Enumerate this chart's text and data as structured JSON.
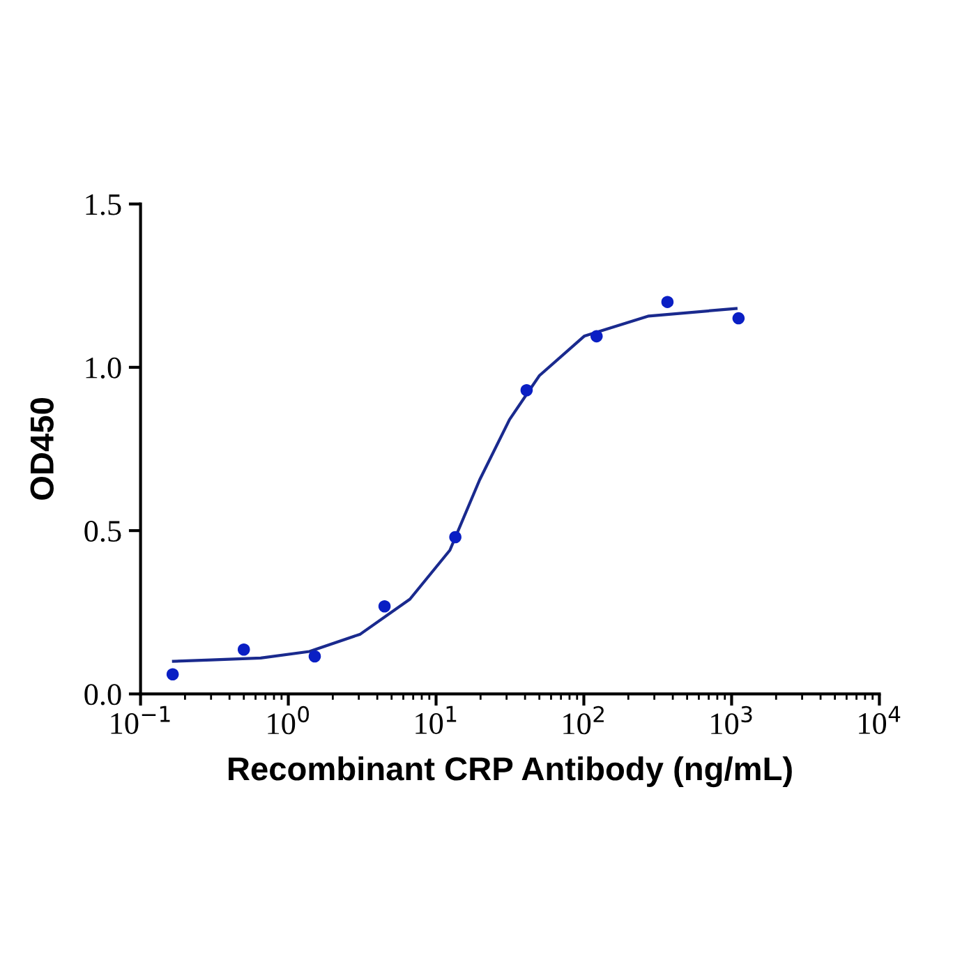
{
  "chart_data": {
    "type": "scatter",
    "xlabel": "Recombinant CRP Antibody (ng/mL)",
    "ylabel": "OD450",
    "log": "x",
    "xlim": [
      0.1,
      10000
    ],
    "xticks": [
      {
        "value": 0.1,
        "label": "10$^{−1}$"
      },
      {
        "value": 1,
        "label": "10$^{0}$"
      },
      {
        "value": 10,
        "label": "10$^{1}$"
      },
      {
        "value": 100,
        "label": "10$^{2}$"
      },
      {
        "value": 1000,
        "label": "10$^{3}$"
      },
      {
        "value": 10000,
        "label": "10$^{4}$"
      }
    ],
    "ylim": [
      0,
      1.5
    ],
    "yticks": [
      {
        "value": 0,
        "label": "0.0"
      },
      {
        "value": 0.5,
        "label": "0.5"
      },
      {
        "value": 1,
        "label": "1.0"
      },
      {
        "value": 1.5,
        "label": "1.5"
      }
    ],
    "grid": false,
    "legend": false,
    "series": [
      {
        "color": "#0a1fc4",
        "marker": "circle",
        "x": [
          0.165,
          0.5,
          1.51,
          4.48,
          13.5,
          41,
          122,
          368,
          1114
        ],
        "values": [
          0.06,
          0.136,
          0.115,
          0.268,
          0.48,
          0.93,
          1.095,
          1.2,
          1.15
        ]
      },
      {
        "type": "line",
        "color": "#1a2a8e",
        "line_style": "solid",
        "x": [
          0.167,
          0.3,
          0.65,
          1.39,
          3.07,
          6.65,
          12.4,
          19.7,
          31.4,
          49.9,
          101,
          275,
          1072
        ],
        "values": [
          0.1,
          0.104,
          0.11,
          0.13,
          0.183,
          0.29,
          0.44,
          0.655,
          0.84,
          0.974,
          1.096,
          1.157,
          1.18
        ]
      }
    ]
  }
}
